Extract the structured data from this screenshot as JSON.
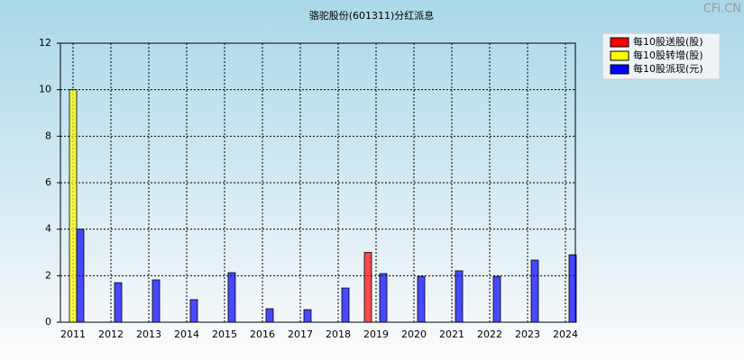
{
  "chart_data": {
    "type": "bar",
    "title": "骆驼股份(601311)分红派息",
    "watermark": "CFi.CN",
    "categories": [
      "2011",
      "2012",
      "2013",
      "2014",
      "2015",
      "2016",
      "2017",
      "2018",
      "2019",
      "2020",
      "2021",
      "2022",
      "2023",
      "2024"
    ],
    "series": [
      {
        "name": "每10股送股(股)",
        "color": "#ff0000",
        "values": [
          null,
          null,
          null,
          null,
          null,
          null,
          null,
          null,
          3,
          null,
          null,
          null,
          null,
          null
        ]
      },
      {
        "name": "每10股转增(股)",
        "color": "#ffff00",
        "values": [
          10,
          null,
          null,
          null,
          null,
          null,
          null,
          null,
          null,
          null,
          null,
          null,
          null,
          null
        ]
      },
      {
        "name": "每10股派现(元)",
        "color": "#0000ff",
        "values": [
          4,
          1.7,
          1.82,
          0.97,
          2.13,
          0.58,
          0.54,
          1.47,
          2.09,
          1.97,
          2.21,
          1.97,
          2.67,
          2.9
        ]
      }
    ],
    "ylim": [
      0,
      12
    ],
    "yticks": [
      0,
      2,
      4,
      6,
      8,
      10,
      12
    ],
    "grid": true,
    "legend": "top-right"
  }
}
